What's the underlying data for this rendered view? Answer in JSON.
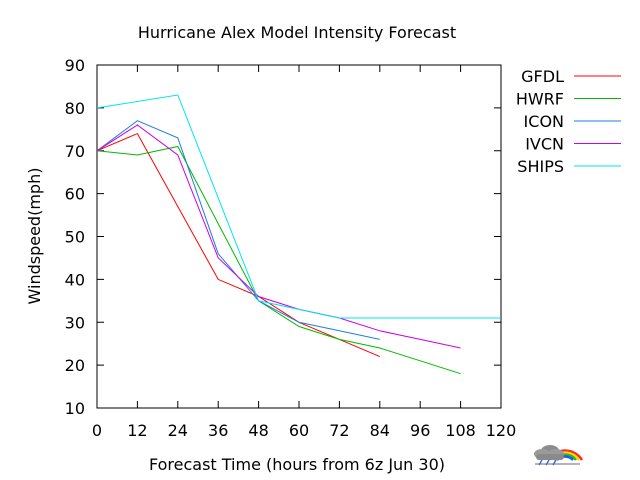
{
  "chart_data": {
    "type": "line",
    "title": "Hurricane Alex Model Intensity Forecast",
    "xlabel": "Forecast Time (hours from 6z Jun 30)",
    "ylabel": "Windspeed(mph)",
    "xlim": [
      0,
      120
    ],
    "ylim": [
      10,
      90
    ],
    "x_ticks": [
      0,
      12,
      24,
      36,
      48,
      60,
      72,
      84,
      96,
      108,
      120
    ],
    "y_ticks": [
      10,
      20,
      30,
      40,
      50,
      60,
      70,
      80,
      90
    ],
    "grid": false,
    "legend_position": "right",
    "series": [
      {
        "name": "GFDL",
        "color": "#ff0000",
        "x": [
          0,
          12,
          24,
          36,
          48,
          60,
          72,
          84
        ],
        "values": [
          70,
          74,
          57,
          40,
          36,
          30,
          26,
          22
        ]
      },
      {
        "name": "HWRF",
        "color": "#00bb00",
        "x": [
          0,
          12,
          24,
          36,
          48,
          60,
          72,
          84,
          96,
          108
        ],
        "values": [
          70,
          69,
          71,
          53,
          35,
          29,
          26,
          24,
          21,
          18
        ]
      },
      {
        "name": "ICON",
        "color": "#1e7fe0",
        "x": [
          0,
          12,
          24,
          36,
          48,
          60,
          72,
          84
        ],
        "values": [
          70,
          77,
          73,
          46,
          35,
          30,
          28,
          26
        ]
      },
      {
        "name": "IVCN",
        "color": "#cc00ee",
        "x": [
          0,
          12,
          24,
          36,
          48,
          60,
          72,
          84,
          96,
          108
        ],
        "values": [
          70,
          76,
          69,
          45,
          36,
          33,
          31,
          28,
          26,
          24
        ]
      },
      {
        "name": "SHIPS",
        "color": "#00e5ee",
        "x": [
          0,
          24,
          48,
          72,
          96,
          120
        ],
        "values": [
          80,
          83,
          35,
          31,
          31,
          31
        ]
      }
    ]
  }
}
